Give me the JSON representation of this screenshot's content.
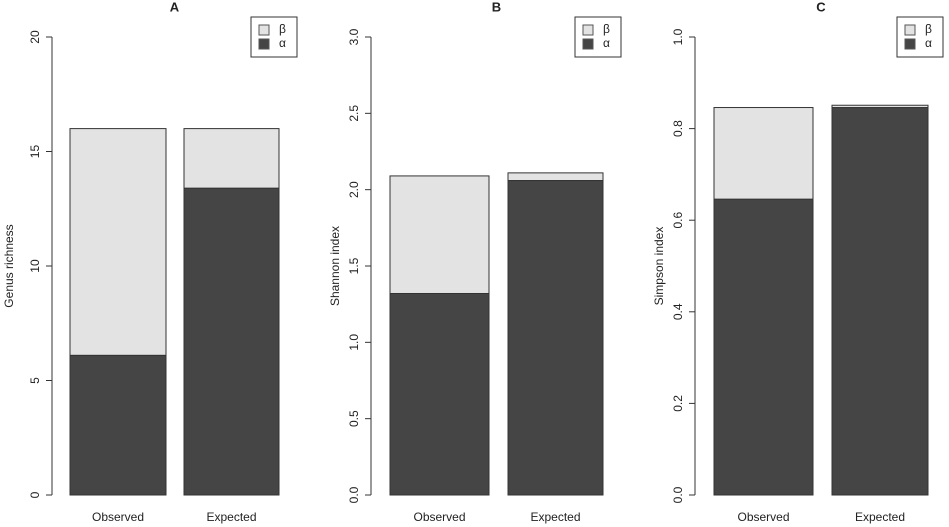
{
  "chart_data": [
    {
      "type": "bar",
      "stacked": true,
      "title": "A",
      "ylabel": "Genus richness",
      "categories": [
        "Observed",
        "Expected"
      ],
      "series": [
        {
          "name": "α",
          "color": "#454545",
          "values": [
            6.1,
            13.4
          ]
        },
        {
          "name": "β",
          "color": "#e3e3e3",
          "values": [
            9.9,
            2.6
          ]
        }
      ],
      "ylim": [
        0,
        20
      ],
      "yticks": [
        0,
        5,
        10,
        15,
        20
      ],
      "legend": "top-right"
    },
    {
      "type": "bar",
      "stacked": true,
      "title": "B",
      "ylabel": "Shannon index",
      "categories": [
        "Observed",
        "Expected"
      ],
      "series": [
        {
          "name": "α",
          "color": "#454545",
          "values": [
            1.32,
            2.06
          ]
        },
        {
          "name": "β",
          "color": "#e3e3e3",
          "values": [
            0.77,
            0.05
          ]
        }
      ],
      "ylim": [
        0,
        3
      ],
      "yticks": [
        {
          "value": 0,
          "label": "0.0"
        },
        0.5,
        {
          "value": 1,
          "label": "1.0"
        },
        1.5,
        {
          "value": 2,
          "label": "2.0"
        },
        2.5,
        {
          "value": 3,
          "label": "3.0"
        }
      ],
      "legend": "top-right"
    },
    {
      "type": "bar",
      "stacked": true,
      "title": "C",
      "ylabel": "Simpson index",
      "categories": [
        "Observed",
        "Expected"
      ],
      "series": [
        {
          "name": "α",
          "color": "#454545",
          "values": [
            0.646,
            0.846
          ]
        },
        {
          "name": "β",
          "color": "#e3e3e3",
          "values": [
            0.2,
            0.005
          ]
        }
      ],
      "ylim": [
        0,
        1
      ],
      "yticks": [
        {
          "value": 0,
          "label": "0.0"
        },
        0.2,
        0.4,
        0.6,
        0.8,
        {
          "value": 1,
          "label": "1.0"
        }
      ],
      "legend": "top-right"
    }
  ]
}
